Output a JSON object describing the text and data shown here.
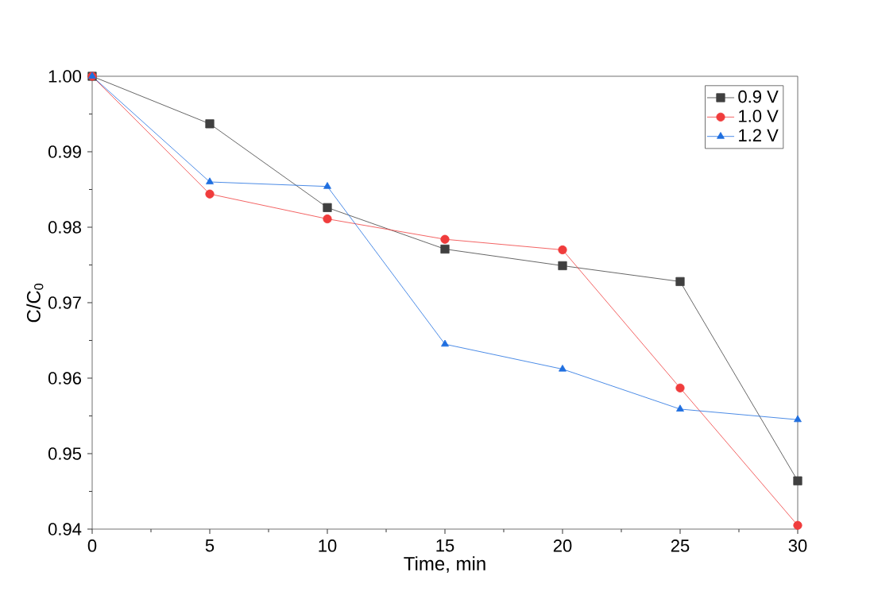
{
  "chart_data": {
    "type": "line",
    "xlabel": "Time, min",
    "ylabel": "C/C$_{0}$",
    "x": [
      0,
      5,
      10,
      15,
      20,
      25,
      30
    ],
    "series": [
      {
        "name": "0.9 V",
        "color": "#404040",
        "marker": "square",
        "values": [
          1.0,
          0.9937,
          0.9826,
          0.9771,
          0.9749,
          0.9728,
          0.9464
        ]
      },
      {
        "name": "1.0 V",
        "color": "#f03c3c",
        "marker": "circle",
        "values": [
          1.0,
          0.9844,
          0.9811,
          0.9784,
          0.977,
          0.9587,
          0.9405
        ]
      },
      {
        "name": "1.2 V",
        "color": "#1f6fe0",
        "marker": "triangle",
        "values": [
          1.0,
          0.986,
          0.9854,
          0.9645,
          0.9612,
          0.9559,
          0.9545
        ]
      }
    ],
    "xlim": [
      0,
      30
    ],
    "xticks": [
      0,
      5,
      10,
      15,
      20,
      25,
      30
    ],
    "ylim": [
      0.94,
      1.0
    ],
    "yticks": [
      {
        "value": 0.94,
        "label": "0.94"
      },
      {
        "value": 0.95,
        "label": "0.95"
      },
      {
        "value": 0.96,
        "label": "0.96"
      },
      {
        "value": 0.97,
        "label": "0.97"
      },
      {
        "value": 0.98,
        "label": "0.98"
      },
      {
        "value": 0.99,
        "label": "0.99"
      },
      {
        "value": 1.0,
        "label": "1.00"
      }
    ],
    "legend": "top right",
    "grid": false
  }
}
